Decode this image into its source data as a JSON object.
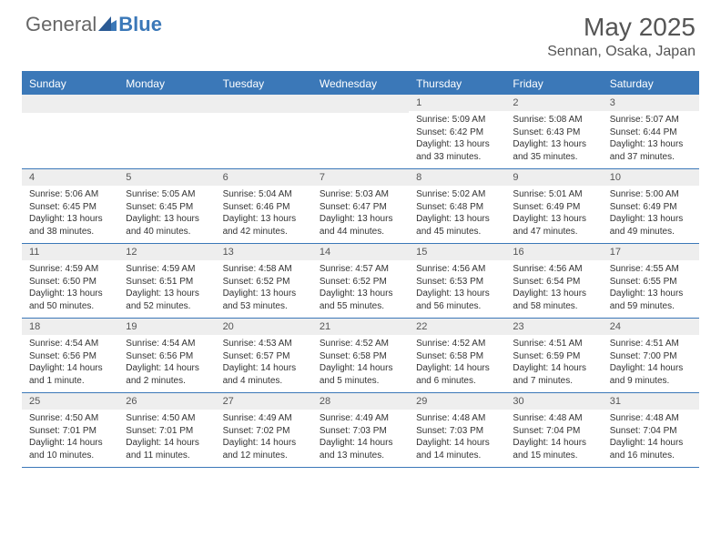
{
  "brand": {
    "part1": "General",
    "part2": "Blue"
  },
  "title": "May 2025",
  "location": "Sennan, Osaka, Japan",
  "colors": {
    "accent": "#3b78b8",
    "header_bg": "#3b78b8",
    "daynum_bg": "#eeeeee",
    "text": "#333333",
    "title_text": "#555555"
  },
  "day_headers": [
    "Sunday",
    "Monday",
    "Tuesday",
    "Wednesday",
    "Thursday",
    "Friday",
    "Saturday"
  ],
  "weeks": [
    [
      {
        "day": "",
        "sunrise": "",
        "sunset": "",
        "daylight": ""
      },
      {
        "day": "",
        "sunrise": "",
        "sunset": "",
        "daylight": ""
      },
      {
        "day": "",
        "sunrise": "",
        "sunset": "",
        "daylight": ""
      },
      {
        "day": "",
        "sunrise": "",
        "sunset": "",
        "daylight": ""
      },
      {
        "day": "1",
        "sunrise": "Sunrise: 5:09 AM",
        "sunset": "Sunset: 6:42 PM",
        "daylight": "Daylight: 13 hours and 33 minutes."
      },
      {
        "day": "2",
        "sunrise": "Sunrise: 5:08 AM",
        "sunset": "Sunset: 6:43 PM",
        "daylight": "Daylight: 13 hours and 35 minutes."
      },
      {
        "day": "3",
        "sunrise": "Sunrise: 5:07 AM",
        "sunset": "Sunset: 6:44 PM",
        "daylight": "Daylight: 13 hours and 37 minutes."
      }
    ],
    [
      {
        "day": "4",
        "sunrise": "Sunrise: 5:06 AM",
        "sunset": "Sunset: 6:45 PM",
        "daylight": "Daylight: 13 hours and 38 minutes."
      },
      {
        "day": "5",
        "sunrise": "Sunrise: 5:05 AM",
        "sunset": "Sunset: 6:45 PM",
        "daylight": "Daylight: 13 hours and 40 minutes."
      },
      {
        "day": "6",
        "sunrise": "Sunrise: 5:04 AM",
        "sunset": "Sunset: 6:46 PM",
        "daylight": "Daylight: 13 hours and 42 minutes."
      },
      {
        "day": "7",
        "sunrise": "Sunrise: 5:03 AM",
        "sunset": "Sunset: 6:47 PM",
        "daylight": "Daylight: 13 hours and 44 minutes."
      },
      {
        "day": "8",
        "sunrise": "Sunrise: 5:02 AM",
        "sunset": "Sunset: 6:48 PM",
        "daylight": "Daylight: 13 hours and 45 minutes."
      },
      {
        "day": "9",
        "sunrise": "Sunrise: 5:01 AM",
        "sunset": "Sunset: 6:49 PM",
        "daylight": "Daylight: 13 hours and 47 minutes."
      },
      {
        "day": "10",
        "sunrise": "Sunrise: 5:00 AM",
        "sunset": "Sunset: 6:49 PM",
        "daylight": "Daylight: 13 hours and 49 minutes."
      }
    ],
    [
      {
        "day": "11",
        "sunrise": "Sunrise: 4:59 AM",
        "sunset": "Sunset: 6:50 PM",
        "daylight": "Daylight: 13 hours and 50 minutes."
      },
      {
        "day": "12",
        "sunrise": "Sunrise: 4:59 AM",
        "sunset": "Sunset: 6:51 PM",
        "daylight": "Daylight: 13 hours and 52 minutes."
      },
      {
        "day": "13",
        "sunrise": "Sunrise: 4:58 AM",
        "sunset": "Sunset: 6:52 PM",
        "daylight": "Daylight: 13 hours and 53 minutes."
      },
      {
        "day": "14",
        "sunrise": "Sunrise: 4:57 AM",
        "sunset": "Sunset: 6:52 PM",
        "daylight": "Daylight: 13 hours and 55 minutes."
      },
      {
        "day": "15",
        "sunrise": "Sunrise: 4:56 AM",
        "sunset": "Sunset: 6:53 PM",
        "daylight": "Daylight: 13 hours and 56 minutes."
      },
      {
        "day": "16",
        "sunrise": "Sunrise: 4:56 AM",
        "sunset": "Sunset: 6:54 PM",
        "daylight": "Daylight: 13 hours and 58 minutes."
      },
      {
        "day": "17",
        "sunrise": "Sunrise: 4:55 AM",
        "sunset": "Sunset: 6:55 PM",
        "daylight": "Daylight: 13 hours and 59 minutes."
      }
    ],
    [
      {
        "day": "18",
        "sunrise": "Sunrise: 4:54 AM",
        "sunset": "Sunset: 6:56 PM",
        "daylight": "Daylight: 14 hours and 1 minute."
      },
      {
        "day": "19",
        "sunrise": "Sunrise: 4:54 AM",
        "sunset": "Sunset: 6:56 PM",
        "daylight": "Daylight: 14 hours and 2 minutes."
      },
      {
        "day": "20",
        "sunrise": "Sunrise: 4:53 AM",
        "sunset": "Sunset: 6:57 PM",
        "daylight": "Daylight: 14 hours and 4 minutes."
      },
      {
        "day": "21",
        "sunrise": "Sunrise: 4:52 AM",
        "sunset": "Sunset: 6:58 PM",
        "daylight": "Daylight: 14 hours and 5 minutes."
      },
      {
        "day": "22",
        "sunrise": "Sunrise: 4:52 AM",
        "sunset": "Sunset: 6:58 PM",
        "daylight": "Daylight: 14 hours and 6 minutes."
      },
      {
        "day": "23",
        "sunrise": "Sunrise: 4:51 AM",
        "sunset": "Sunset: 6:59 PM",
        "daylight": "Daylight: 14 hours and 7 minutes."
      },
      {
        "day": "24",
        "sunrise": "Sunrise: 4:51 AM",
        "sunset": "Sunset: 7:00 PM",
        "daylight": "Daylight: 14 hours and 9 minutes."
      }
    ],
    [
      {
        "day": "25",
        "sunrise": "Sunrise: 4:50 AM",
        "sunset": "Sunset: 7:01 PM",
        "daylight": "Daylight: 14 hours and 10 minutes."
      },
      {
        "day": "26",
        "sunrise": "Sunrise: 4:50 AM",
        "sunset": "Sunset: 7:01 PM",
        "daylight": "Daylight: 14 hours and 11 minutes."
      },
      {
        "day": "27",
        "sunrise": "Sunrise: 4:49 AM",
        "sunset": "Sunset: 7:02 PM",
        "daylight": "Daylight: 14 hours and 12 minutes."
      },
      {
        "day": "28",
        "sunrise": "Sunrise: 4:49 AM",
        "sunset": "Sunset: 7:03 PM",
        "daylight": "Daylight: 14 hours and 13 minutes."
      },
      {
        "day": "29",
        "sunrise": "Sunrise: 4:48 AM",
        "sunset": "Sunset: 7:03 PM",
        "daylight": "Daylight: 14 hours and 14 minutes."
      },
      {
        "day": "30",
        "sunrise": "Sunrise: 4:48 AM",
        "sunset": "Sunset: 7:04 PM",
        "daylight": "Daylight: 14 hours and 15 minutes."
      },
      {
        "day": "31",
        "sunrise": "Sunrise: 4:48 AM",
        "sunset": "Sunset: 7:04 PM",
        "daylight": "Daylight: 14 hours and 16 minutes."
      }
    ]
  ]
}
